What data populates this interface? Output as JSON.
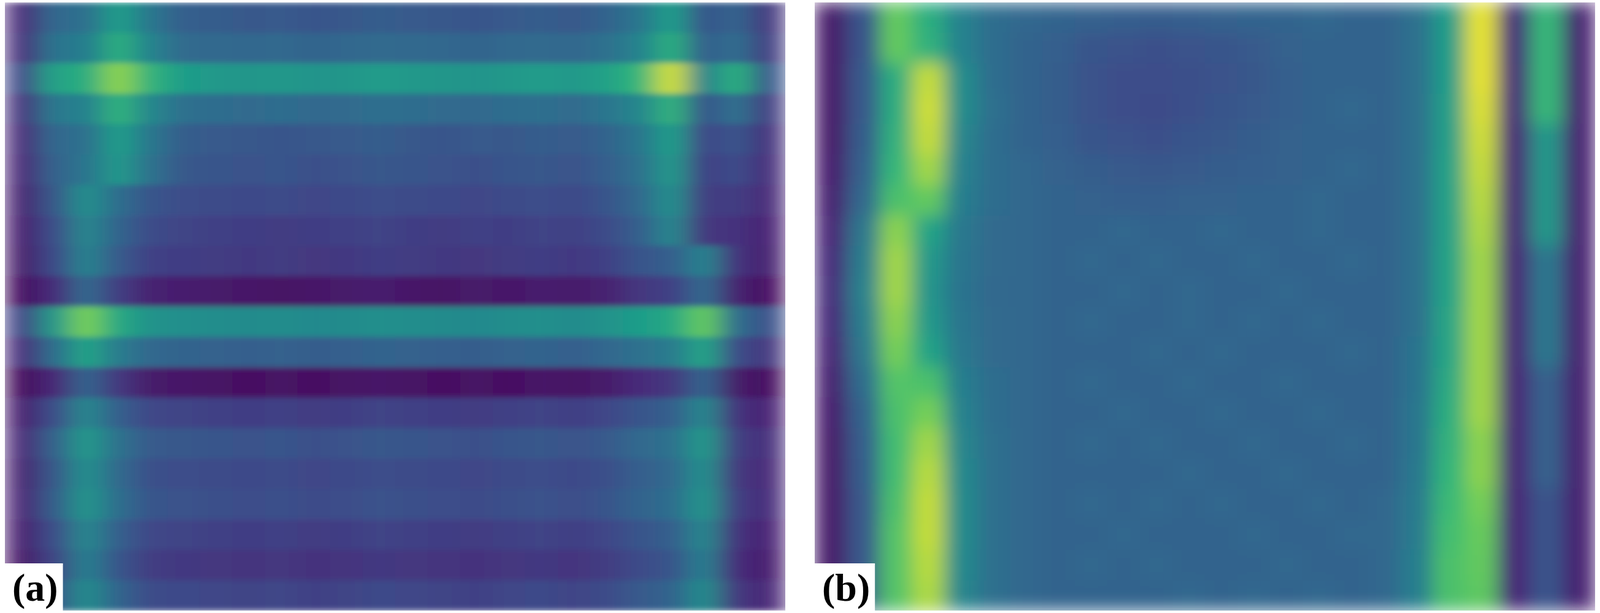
{
  "chart_data": [
    {
      "type": "heatmap",
      "title": "(a)",
      "vlim": [
        0,
        1
      ],
      "cells": [
        [
          0.13,
          0.37,
          0.42,
          0.62,
          0.44,
          0.34,
          0.33,
          0.31,
          0.32,
          0.3,
          0.31,
          0.33,
          0.32,
          0.31,
          0.3,
          0.32,
          0.33,
          0.31,
          0.36,
          0.44,
          0.62,
          0.3,
          0.36,
          0.18
        ],
        [
          0.15,
          0.43,
          0.48,
          0.7,
          0.5,
          0.39,
          0.38,
          0.37,
          0.38,
          0.36,
          0.37,
          0.39,
          0.38,
          0.37,
          0.36,
          0.38,
          0.39,
          0.37,
          0.42,
          0.5,
          0.7,
          0.34,
          0.4,
          0.2
        ],
        [
          0.24,
          0.64,
          0.7,
          0.9,
          0.72,
          0.62,
          0.6,
          0.59,
          0.6,
          0.58,
          0.59,
          0.61,
          0.6,
          0.59,
          0.58,
          0.6,
          0.61,
          0.6,
          0.64,
          0.74,
          0.96,
          0.5,
          0.7,
          0.3
        ],
        [
          0.16,
          0.45,
          0.5,
          0.72,
          0.52,
          0.41,
          0.4,
          0.39,
          0.4,
          0.38,
          0.39,
          0.41,
          0.4,
          0.39,
          0.38,
          0.4,
          0.41,
          0.39,
          0.44,
          0.52,
          0.72,
          0.3,
          0.42,
          0.2
        ],
        [
          0.13,
          0.37,
          0.42,
          0.62,
          0.44,
          0.33,
          0.32,
          0.31,
          0.3,
          0.31,
          0.32,
          0.33,
          0.31,
          0.3,
          0.32,
          0.31,
          0.33,
          0.32,
          0.36,
          0.44,
          0.62,
          0.24,
          0.3,
          0.16
        ],
        [
          0.12,
          0.35,
          0.44,
          0.6,
          0.42,
          0.31,
          0.3,
          0.29,
          0.3,
          0.28,
          0.29,
          0.31,
          0.3,
          0.29,
          0.28,
          0.3,
          0.31,
          0.29,
          0.34,
          0.42,
          0.6,
          0.22,
          0.26,
          0.15
        ],
        [
          0.1,
          0.31,
          0.56,
          0.4,
          0.3,
          0.27,
          0.26,
          0.25,
          0.26,
          0.24,
          0.25,
          0.27,
          0.26,
          0.25,
          0.24,
          0.26,
          0.27,
          0.25,
          0.3,
          0.38,
          0.56,
          0.2,
          0.2,
          0.13
        ],
        [
          0.09,
          0.27,
          0.52,
          0.36,
          0.26,
          0.23,
          0.22,
          0.21,
          0.2,
          0.21,
          0.22,
          0.23,
          0.21,
          0.2,
          0.22,
          0.21,
          0.23,
          0.22,
          0.26,
          0.34,
          0.52,
          0.18,
          0.16,
          0.11
        ],
        [
          0.08,
          0.25,
          0.5,
          0.32,
          0.22,
          0.21,
          0.2,
          0.19,
          0.2,
          0.18,
          0.19,
          0.21,
          0.2,
          0.19,
          0.18,
          0.2,
          0.21,
          0.19,
          0.22,
          0.3,
          0.34,
          0.5,
          0.16,
          0.1
        ],
        [
          0.04,
          0.14,
          0.38,
          0.2,
          0.1,
          0.09,
          0.08,
          0.07,
          0.06,
          0.07,
          0.08,
          0.09,
          0.07,
          0.06,
          0.08,
          0.07,
          0.09,
          0.08,
          0.1,
          0.18,
          0.22,
          0.38,
          0.1,
          0.05
        ],
        [
          0.22,
          0.6,
          0.88,
          0.67,
          0.57,
          0.56,
          0.55,
          0.54,
          0.55,
          0.53,
          0.54,
          0.56,
          0.55,
          0.54,
          0.53,
          0.55,
          0.56,
          0.54,
          0.57,
          0.62,
          0.67,
          0.85,
          0.4,
          0.28
        ],
        [
          0.14,
          0.4,
          0.65,
          0.47,
          0.37,
          0.36,
          0.35,
          0.34,
          0.35,
          0.33,
          0.34,
          0.36,
          0.35,
          0.34,
          0.33,
          0.35,
          0.36,
          0.34,
          0.37,
          0.42,
          0.47,
          0.65,
          0.26,
          0.18
        ],
        [
          0.03,
          0.12,
          0.36,
          0.18,
          0.08,
          0.07,
          0.06,
          0.05,
          0.06,
          0.05,
          0.06,
          0.07,
          0.06,
          0.05,
          0.06,
          0.05,
          0.07,
          0.06,
          0.08,
          0.14,
          0.18,
          0.36,
          0.08,
          0.04
        ],
        [
          0.09,
          0.27,
          0.52,
          0.34,
          0.24,
          0.23,
          0.22,
          0.21,
          0.22,
          0.2,
          0.21,
          0.23,
          0.22,
          0.21,
          0.2,
          0.22,
          0.23,
          0.21,
          0.24,
          0.3,
          0.34,
          0.52,
          0.16,
          0.11
        ],
        [
          0.12,
          0.35,
          0.6,
          0.42,
          0.32,
          0.31,
          0.3,
          0.29,
          0.3,
          0.28,
          0.29,
          0.31,
          0.3,
          0.29,
          0.28,
          0.3,
          0.31,
          0.29,
          0.32,
          0.38,
          0.42,
          0.6,
          0.2,
          0.15
        ],
        [
          0.1,
          0.31,
          0.56,
          0.38,
          0.28,
          0.27,
          0.26,
          0.25,
          0.26,
          0.24,
          0.25,
          0.27,
          0.26,
          0.25,
          0.24,
          0.26,
          0.27,
          0.25,
          0.28,
          0.34,
          0.38,
          0.56,
          0.18,
          0.13
        ],
        [
          0.11,
          0.33,
          0.58,
          0.4,
          0.3,
          0.29,
          0.28,
          0.27,
          0.28,
          0.26,
          0.27,
          0.29,
          0.28,
          0.27,
          0.26,
          0.28,
          0.29,
          0.27,
          0.3,
          0.36,
          0.4,
          0.58,
          0.2,
          0.14
        ],
        [
          0.09,
          0.27,
          0.52,
          0.34,
          0.24,
          0.23,
          0.22,
          0.21,
          0.22,
          0.2,
          0.21,
          0.23,
          0.22,
          0.21,
          0.2,
          0.22,
          0.23,
          0.21,
          0.24,
          0.3,
          0.34,
          0.52,
          0.16,
          0.11
        ],
        [
          0.07,
          0.23,
          0.48,
          0.3,
          0.2,
          0.19,
          0.18,
          0.17,
          0.18,
          0.16,
          0.17,
          0.19,
          0.18,
          0.17,
          0.16,
          0.18,
          0.19,
          0.17,
          0.2,
          0.26,
          0.3,
          0.48,
          0.14,
          0.09
        ],
        [
          0.1,
          0.29,
          0.54,
          0.36,
          0.26,
          0.25,
          0.24,
          0.23,
          0.24,
          0.22,
          0.23,
          0.25,
          0.24,
          0.23,
          0.22,
          0.24,
          0.25,
          0.23,
          0.26,
          0.32,
          0.36,
          0.54,
          0.18,
          0.12
        ]
      ]
    },
    {
      "type": "heatmap",
      "title": "(b)",
      "vlim": [
        0,
        1
      ],
      "cells": [
        [
          0.08,
          0.3,
          0.85,
          0.7,
          0.5,
          0.4,
          0.37,
          0.36,
          0.35,
          0.34,
          0.33,
          0.34,
          0.35,
          0.36,
          0.36,
          0.37,
          0.36,
          0.36,
          0.42,
          0.62,
          0.98,
          0.14,
          0.75,
          0.1
        ],
        [
          0.08,
          0.3,
          0.85,
          0.72,
          0.5,
          0.4,
          0.36,
          0.34,
          0.3,
          0.29,
          0.28,
          0.29,
          0.3,
          0.32,
          0.35,
          0.36,
          0.36,
          0.36,
          0.42,
          0.62,
          0.98,
          0.14,
          0.75,
          0.1
        ],
        [
          0.08,
          0.32,
          0.7,
          0.95,
          0.55,
          0.4,
          0.36,
          0.33,
          0.29,
          0.27,
          0.27,
          0.28,
          0.29,
          0.31,
          0.34,
          0.36,
          0.36,
          0.36,
          0.42,
          0.62,
          0.98,
          0.13,
          0.75,
          0.1
        ],
        [
          0.08,
          0.32,
          0.7,
          0.96,
          0.55,
          0.41,
          0.36,
          0.33,
          0.29,
          0.27,
          0.26,
          0.28,
          0.3,
          0.32,
          0.34,
          0.36,
          0.37,
          0.36,
          0.42,
          0.63,
          0.97,
          0.13,
          0.75,
          0.1
        ],
        [
          0.08,
          0.33,
          0.72,
          0.95,
          0.52,
          0.4,
          0.36,
          0.34,
          0.3,
          0.29,
          0.28,
          0.3,
          0.31,
          0.33,
          0.35,
          0.36,
          0.36,
          0.36,
          0.42,
          0.63,
          0.96,
          0.12,
          0.6,
          0.1
        ],
        [
          0.09,
          0.35,
          0.75,
          0.92,
          0.5,
          0.4,
          0.37,
          0.35,
          0.33,
          0.32,
          0.31,
          0.32,
          0.33,
          0.34,
          0.35,
          0.36,
          0.37,
          0.36,
          0.42,
          0.64,
          0.95,
          0.12,
          0.6,
          0.1
        ],
        [
          0.1,
          0.38,
          0.8,
          0.85,
          0.48,
          0.4,
          0.37,
          0.36,
          0.35,
          0.34,
          0.34,
          0.35,
          0.35,
          0.36,
          0.36,
          0.37,
          0.36,
          0.36,
          0.42,
          0.64,
          0.94,
          0.12,
          0.6,
          0.1
        ],
        [
          0.12,
          0.45,
          0.9,
          0.65,
          0.45,
          0.39,
          0.37,
          0.36,
          0.36,
          0.37,
          0.36,
          0.36,
          0.37,
          0.36,
          0.36,
          0.37,
          0.36,
          0.36,
          0.42,
          0.64,
          0.93,
          0.12,
          0.6,
          0.1
        ],
        [
          0.14,
          0.48,
          0.92,
          0.6,
          0.44,
          0.39,
          0.37,
          0.36,
          0.37,
          0.36,
          0.37,
          0.36,
          0.36,
          0.37,
          0.36,
          0.36,
          0.37,
          0.36,
          0.42,
          0.65,
          0.92,
          0.12,
          0.45,
          0.1
        ],
        [
          0.15,
          0.5,
          0.92,
          0.58,
          0.43,
          0.38,
          0.37,
          0.36,
          0.36,
          0.37,
          0.36,
          0.37,
          0.36,
          0.36,
          0.37,
          0.36,
          0.36,
          0.36,
          0.42,
          0.65,
          0.92,
          0.12,
          0.45,
          0.1
        ],
        [
          0.14,
          0.48,
          0.9,
          0.6,
          0.44,
          0.39,
          0.37,
          0.36,
          0.37,
          0.36,
          0.36,
          0.37,
          0.36,
          0.37,
          0.36,
          0.37,
          0.36,
          0.36,
          0.42,
          0.66,
          0.92,
          0.12,
          0.45,
          0.1
        ],
        [
          0.12,
          0.45,
          0.88,
          0.65,
          0.45,
          0.39,
          0.37,
          0.36,
          0.36,
          0.36,
          0.37,
          0.36,
          0.37,
          0.36,
          0.36,
          0.36,
          0.37,
          0.36,
          0.43,
          0.66,
          0.92,
          0.12,
          0.45,
          0.1
        ],
        [
          0.1,
          0.4,
          0.82,
          0.8,
          0.48,
          0.4,
          0.37,
          0.36,
          0.37,
          0.36,
          0.36,
          0.37,
          0.36,
          0.36,
          0.37,
          0.36,
          0.36,
          0.36,
          0.43,
          0.68,
          0.92,
          0.12,
          0.35,
          0.1
        ],
        [
          0.09,
          0.36,
          0.8,
          0.88,
          0.5,
          0.4,
          0.37,
          0.36,
          0.36,
          0.37,
          0.36,
          0.36,
          0.37,
          0.36,
          0.36,
          0.37,
          0.36,
          0.36,
          0.44,
          0.7,
          0.92,
          0.12,
          0.35,
          0.1
        ],
        [
          0.08,
          0.34,
          0.78,
          0.92,
          0.52,
          0.41,
          0.37,
          0.36,
          0.37,
          0.36,
          0.37,
          0.36,
          0.36,
          0.37,
          0.36,
          0.36,
          0.37,
          0.36,
          0.44,
          0.72,
          0.9,
          0.12,
          0.35,
          0.1
        ],
        [
          0.08,
          0.33,
          0.78,
          0.94,
          0.53,
          0.41,
          0.37,
          0.36,
          0.36,
          0.36,
          0.36,
          0.37,
          0.36,
          0.36,
          0.37,
          0.36,
          0.36,
          0.36,
          0.45,
          0.74,
          0.9,
          0.12,
          0.35,
          0.1
        ],
        [
          0.08,
          0.32,
          0.8,
          0.95,
          0.54,
          0.41,
          0.37,
          0.36,
          0.37,
          0.36,
          0.37,
          0.36,
          0.37,
          0.36,
          0.36,
          0.37,
          0.36,
          0.37,
          0.46,
          0.76,
          0.88,
          0.12,
          0.3,
          0.1
        ],
        [
          0.08,
          0.32,
          0.82,
          0.95,
          0.54,
          0.41,
          0.37,
          0.36,
          0.36,
          0.37,
          0.36,
          0.36,
          0.36,
          0.37,
          0.36,
          0.36,
          0.37,
          0.37,
          0.47,
          0.78,
          0.86,
          0.12,
          0.3,
          0.1
        ],
        [
          0.08,
          0.32,
          0.82,
          0.94,
          0.53,
          0.41,
          0.37,
          0.36,
          0.37,
          0.36,
          0.37,
          0.36,
          0.36,
          0.36,
          0.37,
          0.36,
          0.36,
          0.37,
          0.48,
          0.8,
          0.85,
          0.12,
          0.3,
          0.1
        ],
        [
          0.08,
          0.32,
          0.82,
          0.93,
          0.52,
          0.41,
          0.37,
          0.36,
          0.36,
          0.36,
          0.36,
          0.37,
          0.36,
          0.37,
          0.36,
          0.37,
          0.36,
          0.37,
          0.48,
          0.8,
          0.84,
          0.12,
          0.3,
          0.1
        ]
      ]
    }
  ]
}
